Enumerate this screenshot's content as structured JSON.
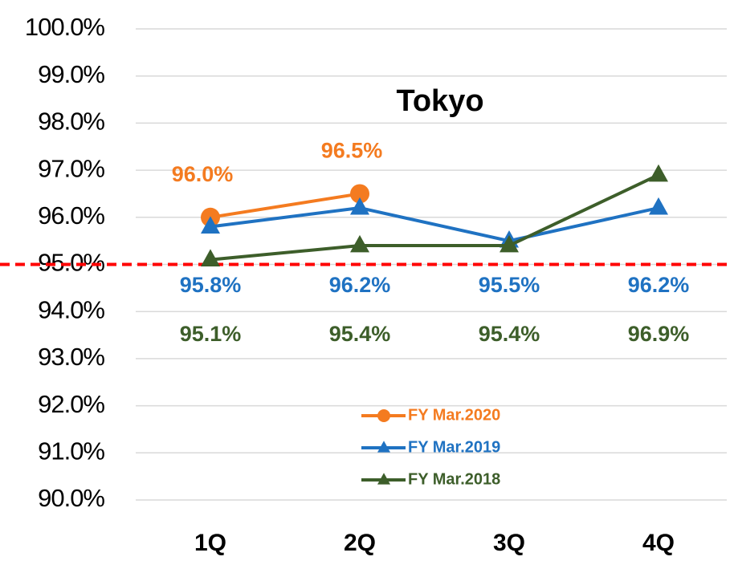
{
  "chart_data": {
    "type": "line",
    "title": "Tokyo",
    "categories": [
      "1Q",
      "2Q",
      "3Q",
      "4Q"
    ],
    "series": [
      {
        "name": "FY Mar.2020",
        "color": "#f47b20",
        "marker": "circle",
        "values": [
          96.0,
          96.5,
          null,
          null
        ],
        "value_labels": [
          "96.0%",
          "96.5%",
          null,
          null
        ]
      },
      {
        "name": "FY Mar.2019",
        "color": "#1f72c2",
        "marker": "triangle",
        "values": [
          95.8,
          96.2,
          95.5,
          96.2
        ],
        "value_labels": [
          "95.8%",
          "96.2%",
          "95.5%",
          "96.2%"
        ]
      },
      {
        "name": "FY Mar.2018",
        "color": "#3d5e2a",
        "marker": "triangle",
        "values": [
          95.1,
          95.4,
          95.4,
          96.9
        ],
        "value_labels": [
          "95.1%",
          "95.4%",
          "95.4%",
          "96.9%"
        ]
      }
    ],
    "ylim": [
      90,
      100
    ],
    "yticks": [
      {
        "value": 90,
        "label": "90.0%"
      },
      {
        "value": 91,
        "label": "91.0%"
      },
      {
        "value": 92,
        "label": "92.0%"
      },
      {
        "value": 93,
        "label": "93.0%"
      },
      {
        "value": 94,
        "label": "94.0%"
      },
      {
        "value": 95,
        "label": "95.0%"
      },
      {
        "value": 96,
        "label": "96.0%"
      },
      {
        "value": 97,
        "label": "97.0%"
      },
      {
        "value": 98,
        "label": "98.0%"
      },
      {
        "value": 99,
        "label": "99.0%"
      },
      {
        "value": 100,
        "label": "100.0%"
      }
    ],
    "grid": true,
    "reference_line": {
      "value": 95,
      "color": "#ff0000"
    }
  }
}
